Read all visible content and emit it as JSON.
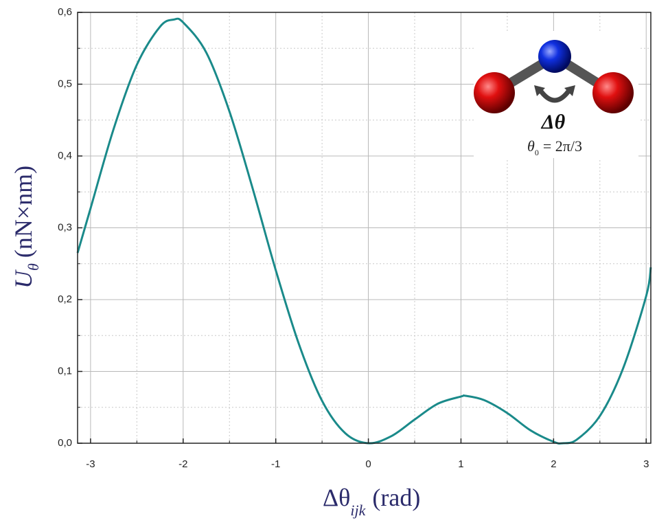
{
  "chart_data": {
    "type": "line",
    "x_label": {
      "main": "Δθ",
      "sub": "ijk",
      "unit": "(rad)"
    },
    "y_label": {
      "main": "U",
      "sub": "θ",
      "unit": "(nN×nm)"
    },
    "annotation": {
      "symbol": "Δθ",
      "formula_main": "θ",
      "formula_sub": "0",
      "formula_rest": "= 2π/3"
    },
    "x": [
      -3.14,
      -3.0,
      -2.75,
      -2.5,
      -2.25,
      -2.1,
      -2.0,
      -1.75,
      -1.5,
      -1.25,
      -1.0,
      -0.75,
      -0.5,
      -0.25,
      0,
      0.25,
      0.5,
      0.75,
      1.0,
      1.05,
      1.25,
      1.5,
      1.75,
      2.0,
      2.1,
      2.25,
      2.5,
      2.75,
      3.0,
      3.05
    ],
    "series": [
      {
        "color": "#1a8a8a",
        "values": [
          0.265,
          0.327,
          0.438,
          0.527,
          0.58,
          0.59,
          0.586,
          0.544,
          0.462,
          0.355,
          0.241,
          0.138,
          0.059,
          0.014,
          0,
          0.01,
          0.033,
          0.055,
          0.065,
          0.066,
          0.06,
          0.042,
          0.018,
          0.002,
          0,
          0.005,
          0.038,
          0.104,
          0.205,
          0.245
        ]
      }
    ],
    "xlim": [
      -3.14,
      3.05
    ],
    "xticks": [
      -3,
      -2,
      -1,
      0,
      1,
      2,
      3
    ],
    "ylim": [
      0,
      0.6
    ],
    "yticks": [
      {
        "value": 0,
        "label": "0,0"
      },
      {
        "value": 0.1,
        "label": "0,1"
      },
      {
        "value": 0.2,
        "label": "0,2"
      },
      {
        "value": 0.3,
        "label": "0,3"
      },
      {
        "value": 0.4,
        "label": "0,4"
      },
      {
        "value": 0.5,
        "label": "0,5"
      },
      {
        "value": 0.6,
        "label": "0,6"
      }
    ],
    "grid": true,
    "minor_grid": true
  }
}
